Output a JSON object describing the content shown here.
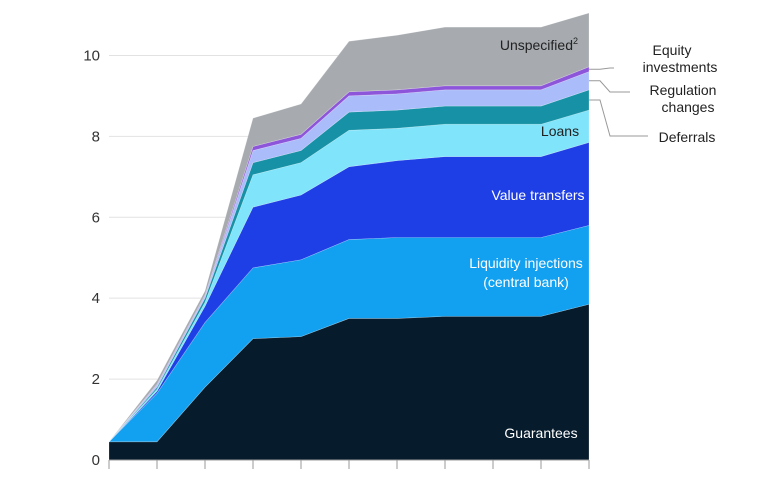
{
  "chart_data": {
    "type": "area",
    "stacked": true,
    "title": "",
    "xlabel": "",
    "ylabel": "",
    "ylim": [
      0,
      11
    ],
    "yticks": [
      0,
      2,
      4,
      6,
      8,
      10
    ],
    "ytick_labels": [
      "0",
      "2",
      "4",
      "6",
      "8",
      "10"
    ],
    "x": [
      0,
      1,
      2,
      3,
      4,
      5,
      6,
      7,
      8,
      9,
      10
    ],
    "grid": "horizontal",
    "legend": "inline labels",
    "series": [
      {
        "name": "Guarantees",
        "color": "#061b2b",
        "values": [
          0.45,
          0.45,
          1.8,
          3.0,
          3.05,
          3.5,
          3.5,
          3.55,
          3.55,
          3.55,
          3.85
        ]
      },
      {
        "name": "Liquidity injections (central bank)",
        "color": "#12a0f0",
        "values": [
          0.0,
          1.2,
          1.6,
          1.75,
          1.9,
          1.95,
          2.0,
          1.95,
          1.95,
          1.95,
          1.95
        ]
      },
      {
        "name": "Value transfers",
        "color": "#1e3ee6",
        "values": [
          0.0,
          0.05,
          0.4,
          1.5,
          1.6,
          1.8,
          1.9,
          2.0,
          2.0,
          2.0,
          2.05
        ]
      },
      {
        "name": "Loans",
        "color": "#80e4fb",
        "values": [
          0.0,
          0.05,
          0.1,
          0.8,
          0.8,
          0.9,
          0.8,
          0.8,
          0.8,
          0.8,
          0.8
        ]
      },
      {
        "name": "Deferrals",
        "color": "#1791a5",
        "values": [
          0.0,
          0.05,
          0.1,
          0.3,
          0.3,
          0.45,
          0.45,
          0.45,
          0.45,
          0.45,
          0.5
        ]
      },
      {
        "name": "Regulation changes",
        "color": "#aabcfa",
        "values": [
          0.0,
          0.05,
          0.05,
          0.3,
          0.3,
          0.4,
          0.4,
          0.4,
          0.4,
          0.4,
          0.45
        ]
      },
      {
        "name": "Equity investments",
        "color": "#8d55d9",
        "values": [
          0.0,
          0.02,
          0.03,
          0.1,
          0.1,
          0.1,
          0.1,
          0.1,
          0.1,
          0.1,
          0.12
        ]
      },
      {
        "name": "Unspecified",
        "color": "#a7abaf",
        "values": [
          0.0,
          0.1,
          0.1,
          0.7,
          0.75,
          1.25,
          1.35,
          1.45,
          1.45,
          1.45,
          1.33
        ]
      }
    ],
    "labels": {
      "guarantees": "Guarantees",
      "liquidity_line1": "Liquidity injections",
      "liquidity_line2": "(central bank)",
      "value_transfers": "Value transfers",
      "loans": "Loans",
      "unspecified": "Unspecified",
      "unspecified_sup": "2",
      "equity_line1": "Equity",
      "equity_line2": "investments",
      "regulation_line1": "Regulation",
      "regulation_line2": "changes",
      "deferrals": "Deferrals"
    }
  }
}
